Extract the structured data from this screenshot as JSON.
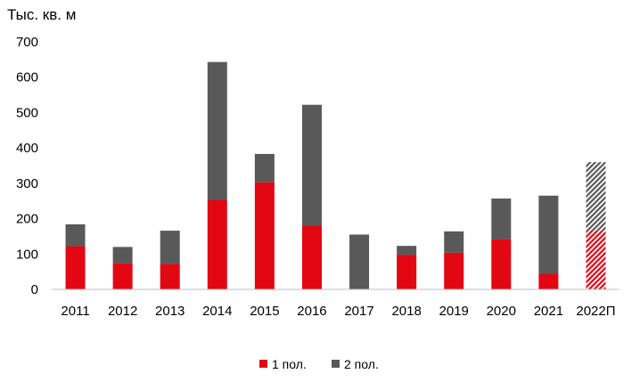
{
  "chart_data": {
    "type": "bar",
    "stacked": true,
    "unit_label": "Тыс. кв. м",
    "categories": [
      "2011",
      "2012",
      "2013",
      "2014",
      "2015",
      "2016",
      "2017",
      "2018",
      "2019",
      "2020",
      "2021",
      "2022П"
    ],
    "series": [
      {
        "name": "1 пол.",
        "color": "#e30613",
        "values": [
          122,
          74,
          72,
          253,
          303,
          180,
          0,
          98,
          104,
          142,
          44,
          165
        ]
      },
      {
        "name": "2 пол.",
        "color": "#595959",
        "values": [
          62,
          46,
          94,
          390,
          80,
          342,
          155,
          25,
          60,
          115,
          221,
          195
        ]
      }
    ],
    "forecast_category": "2022П",
    "forecast_style": "hatched",
    "ylim": [
      0,
      700
    ],
    "yticks": [
      0,
      100,
      200,
      300,
      400,
      500,
      600,
      700
    ],
    "grid": false,
    "legend_position": "bottom"
  }
}
